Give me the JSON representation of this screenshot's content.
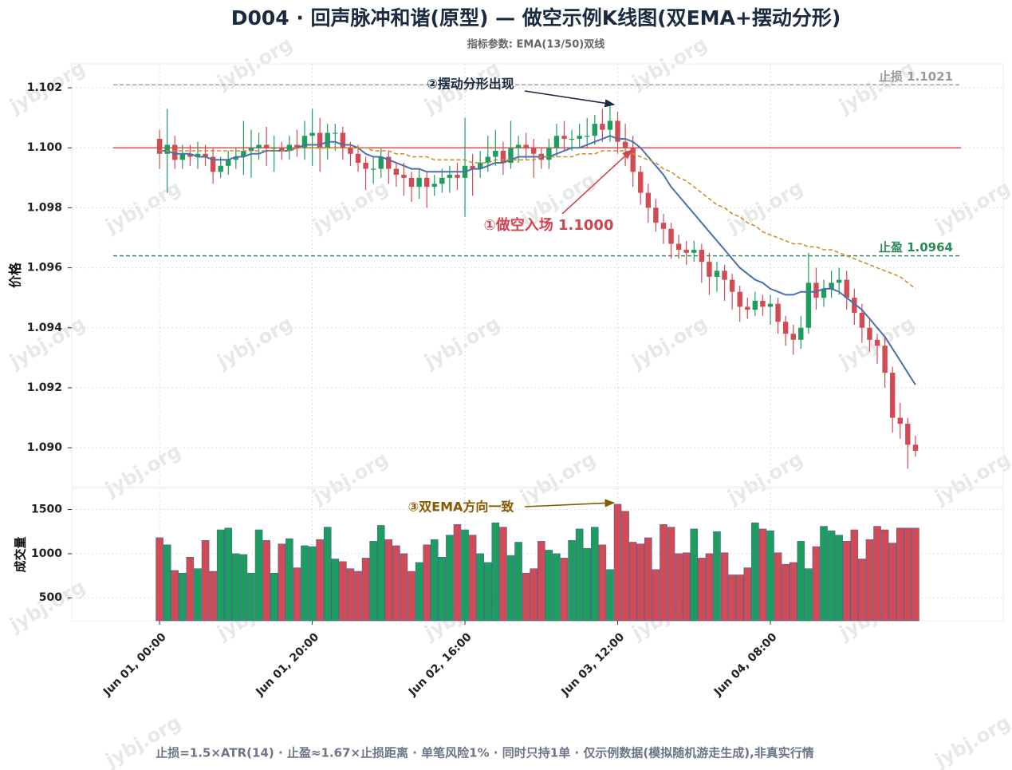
{
  "chart_data": {
    "type": "candlestick",
    "title": "D004 · 回声脉冲和谐(原型) — 做空示例K线图(双EMA+摆动分形)",
    "subtitle": "指标参数: EMA(13/50)双线",
    "ylabel": "价格",
    "volume_label": "成交量",
    "footer": "止损=1.5×ATR(14) · 止盈≈1.67×止损距离 · 单笔风险1% · 同时只持1单 · 仅示例数据(模拟随机游走生成),非真实行情",
    "watermark": "jybj.org",
    "up_color": "#1e9e5e",
    "down_color": "#d14b55",
    "x": [
      "Jun 01, 00:00",
      "Jun 01, 01:00",
      "Jun 01, 02:00",
      "Jun 01, 03:00",
      "Jun 01, 04:00",
      "Jun 01, 05:00",
      "Jun 01, 06:00",
      "Jun 01, 07:00",
      "Jun 01, 08:00",
      "Jun 01, 09:00",
      "Jun 01, 10:00",
      "Jun 01, 11:00",
      "Jun 01, 12:00",
      "Jun 01, 13:00",
      "Jun 01, 14:00",
      "Jun 01, 15:00",
      "Jun 01, 16:00",
      "Jun 01, 17:00",
      "Jun 01, 18:00",
      "Jun 01, 19:00",
      "Jun 01, 20:00",
      "Jun 01, 21:00",
      "Jun 01, 22:00",
      "Jun 01, 23:00",
      "Jun 02, 00:00",
      "Jun 02, 01:00",
      "Jun 02, 02:00",
      "Jun 02, 03:00",
      "Jun 02, 04:00",
      "Jun 02, 05:00",
      "Jun 02, 06:00",
      "Jun 02, 07:00",
      "Jun 02, 08:00",
      "Jun 02, 09:00",
      "Jun 02, 10:00",
      "Jun 02, 11:00",
      "Jun 02, 12:00",
      "Jun 02, 13:00",
      "Jun 02, 14:00",
      "Jun 02, 15:00",
      "Jun 02, 16:00",
      "Jun 02, 17:00",
      "Jun 02, 18:00",
      "Jun 02, 19:00",
      "Jun 02, 20:00",
      "Jun 02, 21:00",
      "Jun 02, 22:00",
      "Jun 02, 23:00",
      "Jun 03, 00:00",
      "Jun 03, 01:00",
      "Jun 03, 02:00",
      "Jun 03, 03:00",
      "Jun 03, 04:00",
      "Jun 03, 05:00",
      "Jun 03, 06:00",
      "Jun 03, 07:00",
      "Jun 03, 08:00",
      "Jun 03, 09:00",
      "Jun 03, 10:00",
      "Jun 03, 11:00",
      "Jun 03, 12:00",
      "Jun 03, 13:00",
      "Jun 03, 14:00",
      "Jun 03, 15:00",
      "Jun 03, 16:00",
      "Jun 03, 17:00",
      "Jun 03, 18:00",
      "Jun 03, 19:00",
      "Jun 03, 20:00",
      "Jun 03, 21:00",
      "Jun 03, 22:00",
      "Jun 03, 23:00",
      "Jun 04, 00:00",
      "Jun 04, 01:00",
      "Jun 04, 02:00",
      "Jun 04, 03:00",
      "Jun 04, 04:00",
      "Jun 04, 05:00",
      "Jun 04, 06:00",
      "Jun 04, 07:00",
      "Jun 04, 08:00",
      "Jun 04, 09:00",
      "Jun 04, 10:00",
      "Jun 04, 11:00",
      "Jun 04, 12:00",
      "Jun 04, 13:00",
      "Jun 04, 14:00",
      "Jun 04, 15:00",
      "Jun 04, 16:00",
      "Jun 04, 17:00",
      "Jun 04, 18:00",
      "Jun 04, 19:00",
      "Jun 04, 20:00",
      "Jun 04, 21:00",
      "Jun 04, 22:00",
      "Jun 04, 23:00",
      "Jun 05, 00:00",
      "Jun 05, 01:00",
      "Jun 05, 02:00",
      "Jun 05, 03:00"
    ],
    "xticks": [
      "Jun 01, 00:00",
      "Jun 01, 20:00",
      "Jun 02, 16:00",
      "Jun 03, 12:00",
      "Jun 04, 08:00"
    ],
    "open": [
      1.1003,
      1.0998,
      1.1001,
      1.0996,
      1.0998,
      1.0997,
      1.0998,
      1.0997,
      1.0992,
      1.0994,
      1.0996,
      1.0997,
      1.0999,
      1.1,
      1.1001,
      1.1,
      1.1,
      1.0999,
      1.1001,
      1.1,
      1.1004,
      1.1005,
      1.1,
      1.1005,
      1.1005,
      1.1,
      1.0998,
      1.0995,
      1.0993,
      1.0993,
      1.0997,
      1.0993,
      1.0991,
      1.099,
      1.0987,
      1.099,
      1.0987,
      1.0988,
      1.099,
      1.0991,
      1.099,
      1.0994,
      1.0993,
      1.0995,
      1.0997,
      1.0999,
      1.0995,
      1.1,
      1.1001,
      1.1,
      1.0998,
      1.0996,
      1.1,
      1.1004,
      1.1003,
      1.1003,
      1.1004,
      1.1004,
      1.1008,
      1.1006,
      1.1009,
      1.1002,
      1.1,
      1.0992,
      1.0985,
      1.098,
      1.0975,
      1.0973,
      1.0968,
      1.0966,
      1.0965,
      1.0966,
      1.0962,
      1.0957,
      1.0959,
      1.0956,
      1.0952,
      1.0947,
      1.0946,
      1.0949,
      1.0947,
      1.0948,
      1.0942,
      1.0938,
      1.0936,
      1.094,
      1.0955,
      1.095,
      1.0953,
      1.0955,
      1.0956,
      1.095,
      1.0945,
      1.094,
      1.0936,
      1.0934,
      1.0925,
      1.091,
      1.0908,
      1.0901
    ],
    "high": [
      1.1006,
      1.1013,
      1.1004,
      1.1001,
      1.1001,
      1.1002,
      1.1001,
      1.1,
      1.0997,
      1.0999,
      1.1,
      1.1009,
      1.1006,
      1.1005,
      1.1007,
      1.1004,
      1.1002,
      1.1004,
      1.1006,
      1.1009,
      1.1013,
      1.101,
      1.1008,
      1.1008,
      1.1007,
      1.1002,
      1.1001,
      1.0997,
      1.0997,
      1.1,
      1.0999,
      1.0995,
      1.0995,
      1.0992,
      1.0993,
      1.0992,
      1.0991,
      1.0993,
      1.0994,
      1.0995,
      1.101,
      1.0998,
      1.0999,
      1.1004,
      1.1006,
      1.1002,
      1.1009,
      1.1004,
      1.1005,
      1.1003,
      1.1,
      1.1003,
      1.1008,
      1.1009,
      1.1006,
      1.1008,
      1.101,
      1.1011,
      1.1013,
      1.1014,
      1.1012,
      1.1008,
      1.1004,
      1.0994,
      1.0988,
      1.0983,
      1.0978,
      1.0975,
      1.0971,
      1.0969,
      1.0969,
      1.0968,
      1.0965,
      1.0962,
      1.0961,
      1.0958,
      1.0954,
      1.095,
      1.0952,
      1.0951,
      1.0951,
      1.095,
      1.0944,
      1.0941,
      1.0944,
      1.0965,
      1.096,
      1.0956,
      1.0959,
      1.096,
      1.0959,
      1.0953,
      1.0948,
      1.0943,
      1.0938,
      1.0937,
      1.0927,
      1.0915,
      1.091,
      1.0904
    ],
    "low": [
      1.0993,
      1.0985,
      1.0993,
      1.0993,
      1.0994,
      1.0993,
      1.0994,
      1.0988,
      1.099,
      1.0991,
      1.0993,
      1.0991,
      1.099,
      1.0996,
      1.0994,
      1.0992,
      1.0996,
      1.0996,
      1.0997,
      1.0996,
      1.0994,
      1.0992,
      1.0996,
      1.0999,
      1.0996,
      1.0994,
      1.0992,
      1.0986,
      1.0988,
      1.099,
      1.0988,
      1.0987,
      1.0984,
      1.0982,
      1.0983,
      1.098,
      1.0984,
      1.0985,
      1.0985,
      1.0986,
      1.0977,
      1.0984,
      1.099,
      1.0992,
      1.0994,
      1.0991,
      1.0993,
      1.0995,
      1.0996,
      1.099,
      1.0993,
      1.0993,
      1.0997,
      1.0999,
      1.0999,
      1.1,
      1.1,
      1.1001,
      1.1002,
      1.1002,
      1.0998,
      1.0994,
      1.0987,
      1.0981,
      1.0975,
      1.0972,
      1.0968,
      1.0963,
      1.0963,
      1.0961,
      1.0962,
      1.0955,
      1.0951,
      1.0952,
      1.0949,
      1.0946,
      1.0942,
      1.0943,
      1.0944,
      1.0944,
      1.0941,
      1.0938,
      1.0934,
      1.0931,
      1.0933,
      1.0938,
      1.0946,
      1.0947,
      1.095,
      1.0951,
      1.0946,
      1.0941,
      1.0935,
      1.0932,
      1.0928,
      1.092,
      1.0905,
      1.0903,
      1.0893,
      1.0897
    ],
    "close": [
      1.0998,
      1.1001,
      1.0996,
      1.0998,
      1.0997,
      1.0998,
      1.0997,
      1.0992,
      1.0994,
      1.0996,
      1.0997,
      1.0999,
      1.1,
      1.1001,
      1.1,
      1.1,
      1.0999,
      1.1001,
      1.1,
      1.1004,
      1.1005,
      1.1,
      1.1005,
      1.1005,
      1.1,
      1.0998,
      1.0995,
      1.0993,
      1.0993,
      1.0997,
      1.0993,
      1.0991,
      1.099,
      1.0987,
      1.099,
      1.0987,
      1.0988,
      1.099,
      1.0991,
      1.099,
      1.0994,
      1.0993,
      1.0995,
      1.0997,
      1.0999,
      1.0995,
      1.1,
      1.1001,
      1.1,
      1.0998,
      1.0996,
      1.1,
      1.1004,
      1.1003,
      1.1003,
      1.1004,
      1.1004,
      1.1008,
      1.1006,
      1.1009,
      1.1002,
      1.1,
      1.0992,
      1.0985,
      1.098,
      1.0975,
      1.0973,
      1.0968,
      1.0966,
      1.0965,
      1.0966,
      1.0962,
      1.0957,
      1.0959,
      1.0956,
      1.0952,
      1.0947,
      1.0946,
      1.0949,
      1.0947,
      1.0948,
      1.0942,
      1.0938,
      1.0936,
      1.094,
      1.0955,
      1.095,
      1.0953,
      1.0955,
      1.0956,
      1.095,
      1.0945,
      1.094,
      1.0936,
      1.0934,
      1.0925,
      1.091,
      1.0908,
      1.0901,
      1.0899
    ],
    "volume": [
      1180,
      1100,
      810,
      780,
      960,
      830,
      1150,
      800,
      1270,
      1290,
      1000,
      990,
      780,
      1270,
      1150,
      780,
      1110,
      1170,
      840,
      1090,
      1080,
      1160,
      1300,
      940,
      910,
      830,
      800,
      950,
      1140,
      1320,
      1160,
      1090,
      1000,
      800,
      900,
      1100,
      1160,
      960,
      1210,
      1330,
      1270,
      1210,
      1000,
      900,
      1350,
      1300,
      980,
      1130,
      780,
      830,
      1140,
      1040,
      1000,
      950,
      1150,
      1280,
      1060,
      1300,
      1100,
      820,
      1560,
      1480,
      1130,
      1110,
      1180,
      820,
      1330,
      1300,
      1000,
      1010,
      1280,
      950,
      1000,
      1250,
      1010,
      760,
      760,
      840,
      1350,
      1280,
      1260,
      1010,
      880,
      900,
      1140,
      830,
      1080,
      1310,
      1260,
      1210,
      1140,
      1270,
      940,
      1160,
      1310,
      1270,
      1120,
      1290,
      1290,
      1290
    ],
    "lines": [
      {
        "color": "#4a70ad",
        "style": "solid",
        "values": [
          1.0999,
          1.0999,
          1.0998,
          1.0998,
          1.0998,
          1.0997,
          1.0997,
          1.0996,
          1.0996,
          1.0996,
          1.0997,
          1.0997,
          1.0998,
          1.0998,
          1.0999,
          1.0999,
          1.0999,
          1.0999,
          1.1,
          1.1001,
          1.1001,
          1.1001,
          1.1002,
          1.1002,
          1.1001,
          1.1001,
          1.1,
          1.0998,
          1.0997,
          1.0997,
          1.0996,
          1.0995,
          1.0994,
          1.0993,
          1.0993,
          1.0992,
          1.0992,
          1.0992,
          1.0992,
          1.0992,
          1.0992,
          1.0993,
          1.0993,
          1.0994,
          1.0995,
          1.0995,
          1.0996,
          1.0997,
          1.0997,
          1.0997,
          1.0997,
          1.0997,
          1.0998,
          1.0999,
          1.1,
          1.1,
          1.1001,
          1.1002,
          1.1003,
          1.1004,
          1.1003,
          1.1003,
          1.1002,
          1.1,
          1.0997,
          1.0994,
          1.0991,
          1.0987,
          1.0984,
          1.0981,
          1.0978,
          1.0975,
          1.0972,
          1.0969,
          1.0966,
          1.0963,
          1.096,
          1.0958,
          1.0956,
          1.0955,
          1.0953,
          1.0952,
          1.0951,
          1.0951,
          1.0952,
          1.0952,
          1.0952,
          1.0953,
          1.0953,
          1.0952,
          1.095,
          1.0948,
          1.0946,
          1.0943,
          1.094,
          1.0937,
          1.0933,
          1.0929,
          1.0925,
          1.0921
        ]
      },
      {
        "color": "#c8922a",
        "style": "dashed",
        "values": [
          1.0999,
          1.0999,
          1.0999,
          1.0999,
          1.0999,
          1.0999,
          1.0999,
          1.0999,
          1.0999,
          1.0999,
          1.0999,
          1.0999,
          1.0999,
          1.0999,
          1.0999,
          1.0999,
          1.0999,
          1.0999,
          1.1,
          1.1,
          1.1,
          1.1,
          1.1,
          1.1,
          1.1,
          1.1,
          1.1,
          1.1,
          1.0999,
          1.0999,
          1.0999,
          1.0998,
          1.0998,
          1.0997,
          1.0997,
          1.0997,
          1.0996,
          1.0996,
          1.0996,
          1.0996,
          1.0996,
          1.0995,
          1.0995,
          1.0995,
          1.0996,
          1.0996,
          1.0996,
          1.0996,
          1.0996,
          1.0996,
          1.0997,
          1.0997,
          1.0997,
          1.0997,
          1.0997,
          1.0998,
          1.0998,
          1.0998,
          1.0999,
          1.0999,
          1.0999,
          1.0999,
          1.0998,
          1.0997,
          1.0996,
          1.0995,
          1.0993,
          1.0992,
          1.099,
          1.0989,
          1.0987,
          1.0985,
          1.0983,
          1.0981,
          1.098,
          1.0978,
          1.0977,
          1.0975,
          1.0974,
          1.0972,
          1.0971,
          1.097,
          1.0969,
          1.0968,
          1.0968,
          1.0967,
          1.0967,
          1.0966,
          1.0966,
          1.0965,
          1.0964,
          1.0963,
          1.0962,
          1.0961,
          1.096,
          1.0959,
          1.0958,
          1.0957,
          1.0955,
          1.0953
        ]
      }
    ],
    "levels": [
      {
        "value": 1.1021,
        "label": "止损 1.1021",
        "color": "#9a9a9a",
        "style": "dashed"
      },
      {
        "value": 1.0964,
        "label": "止盈 1.0964",
        "color": "#2e8b57",
        "style": "dashed"
      },
      {
        "value": 1.1,
        "color": "#d9534f",
        "style": "solid"
      }
    ],
    "annotations": [
      {
        "text": "②摆动分形出现",
        "color": "#1a2a40"
      },
      {
        "text": "①做空入场 1.1000",
        "color": "#d0454f"
      },
      {
        "text": "③双EMA方向一致",
        "color": "#8a5a00"
      }
    ],
    "ylim": [
      1.0887,
      1.1028
    ],
    "yticks": [
      {
        "value": 1.09,
        "label": "1.090"
      },
      1.092,
      1.094,
      1.096,
      1.098,
      {
        "value": 1.1,
        "label": "1.100"
      },
      1.102
    ],
    "volume_ylim": [
      240,
      1740
    ],
    "volume_yticks": [
      500,
      1000,
      1500
    ],
    "grid": true
  }
}
